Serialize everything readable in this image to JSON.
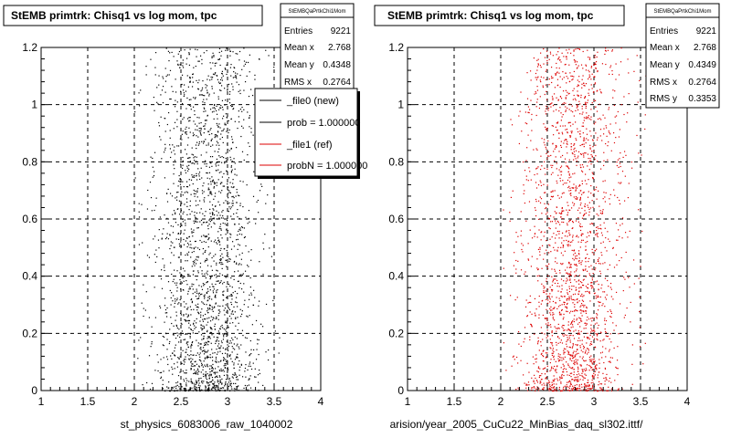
{
  "colors": {
    "black": "#000000",
    "red": "#dd0000",
    "frame": "#000000",
    "background": "#ffffff"
  },
  "footer_fragment": "",
  "chart_data": [
    {
      "type": "scatter",
      "title": "StEMB primtrk: Chisq1 vs log mom, tpc",
      "xlabel": "st_physics_6083006_raw_1040002",
      "ylabel": "",
      "xlim": [
        1,
        4
      ],
      "ylim": [
        0,
        1.2
      ],
      "x_ticks": [
        "1",
        "1.5",
        "2",
        "2.5",
        "3",
        "3.5",
        "4"
      ],
      "y_ticks": [
        "0",
        "0.2",
        "0.4",
        "0.6",
        "0.8",
        "1",
        "1.2"
      ],
      "grid": true,
      "point_color": "#000000",
      "distribution": {
        "x_center": 2.768,
        "x_rms": 0.2764,
        "y_mean": 0.4348,
        "y_rms": 0.3353,
        "x_range": [
          2.0,
          3.6
        ],
        "y_range": [
          0,
          1.2
        ]
      },
      "stats": {
        "name": "StEMBQaPrtkChi1Mom",
        "rows": [
          {
            "label": "Entries",
            "value": "9221"
          },
          {
            "label": "Mean x",
            "value": "2.768"
          },
          {
            "label": "Mean y",
            "value": "0.4348"
          },
          {
            "label": "RMS x",
            "value": "0.2764"
          }
        ]
      },
      "legend": {
        "placement": "top-right",
        "entries": [
          {
            "label": "_file0 (new)",
            "color": "#000000"
          },
          {
            "label": "prob = 1.000000",
            "color": "#000000"
          },
          {
            "label": "_file1 (ref)",
            "color": "#dd0000"
          },
          {
            "label": "probN = 1.000000",
            "color": "#dd0000"
          }
        ]
      }
    },
    {
      "type": "scatter",
      "title": "StEMB primtrk: Chisq1 vs log mom, tpc",
      "xlabel": "arision/year_2005_CuCu22_MinBias_daq_sl302.ittf/",
      "ylabel": "",
      "xlim": [
        1,
        4
      ],
      "ylim": [
        0,
        1.2
      ],
      "x_ticks": [
        "1",
        "1.5",
        "2",
        "2.5",
        "3",
        "3.5",
        "4"
      ],
      "y_ticks": [
        "0",
        "0.2",
        "0.4",
        "0.6",
        "0.8",
        "1",
        "1.2"
      ],
      "grid": true,
      "point_color": "#dd0000",
      "distribution": {
        "x_center": 2.768,
        "x_rms": 0.2764,
        "y_mean": 0.4349,
        "y_rms": 0.3353,
        "x_range": [
          2.0,
          3.6
        ],
        "y_range": [
          0,
          1.2
        ]
      },
      "stats": {
        "name": "StEMBQaPrtkChi1Mom",
        "rows": [
          {
            "label": "Entries",
            "value": "9221"
          },
          {
            "label": "Mean x",
            "value": "2.768"
          },
          {
            "label": "Mean y",
            "value": "0.4349"
          },
          {
            "label": "RMS x",
            "value": "0.2764"
          },
          {
            "label": "RMS y",
            "value": "0.3353"
          }
        ]
      }
    }
  ]
}
